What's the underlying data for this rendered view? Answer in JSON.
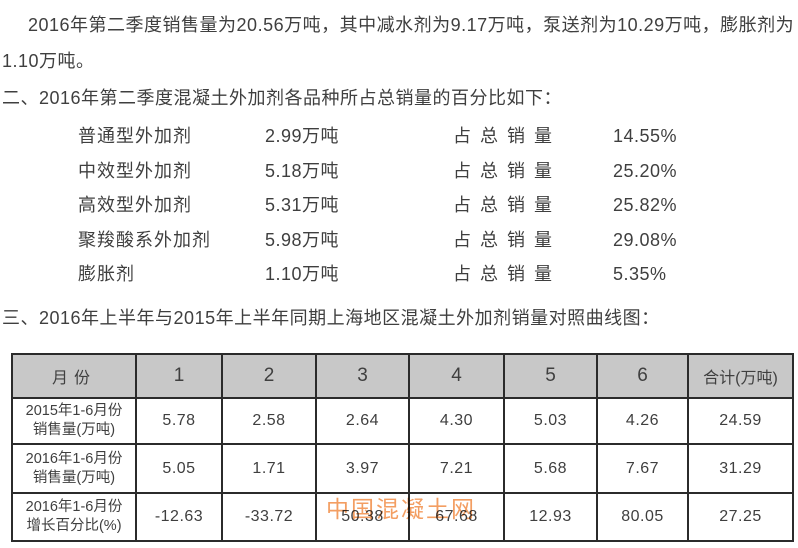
{
  "page": {
    "background": "#ffffff",
    "text_color": "#3f3f3f"
  },
  "intro_paragraph": {
    "line1": "2016年第二季度销售量为20.56万吨，其中减水剂为9.17万吨，泵送剂为10.29万吨，膨胀剂为",
    "line2": "1.10万吨。"
  },
  "section2": {
    "heading": "二、2016年第二季度混凝土外加剂各品种所占总销量的百分比如下：",
    "rows": [
      {
        "name": "普通型外加剂",
        "volume": "2.99万吨",
        "share_label": "占总销量",
        "percent": "14.55%"
      },
      {
        "name": "中效型外加剂",
        "volume": "5.18万吨",
        "share_label": "占总销量",
        "percent": "25.20%"
      },
      {
        "name": "高效型外加剂",
        "volume": "5.31万吨",
        "share_label": "占总销量",
        "percent": "25.82%"
      },
      {
        "name": "聚羧酸系外加剂",
        "volume": "5.98万吨",
        "share_label": "占总销量",
        "percent": "29.08%"
      },
      {
        "name": "膨胀剂",
        "volume": "1.10万吨",
        "share_label": "占总销量",
        "percent": "5.35%"
      }
    ]
  },
  "section3": {
    "heading": "三、2016年上半年与2015年上半年同期上海地区混凝土外加剂销量对照曲线图："
  },
  "table": {
    "header_bg": "#c8c8c8",
    "border_color": "#2b2b2b",
    "columns": [
      "月份",
      "1",
      "2",
      "3",
      "4",
      "5",
      "6",
      "合计(万吨)"
    ],
    "rows": [
      {
        "label_line1": "2015年1-6月份",
        "label_line2": "销售量(万吨)",
        "values": [
          "5.78",
          "2.58",
          "2.64",
          "4.30",
          "5.03",
          "4.26",
          "24.59"
        ]
      },
      {
        "label_line1": "2016年1-6月份",
        "label_line2": "销售量(万吨)",
        "values": [
          "5.05",
          "1.71",
          "3.97",
          "7.21",
          "5.68",
          "7.67",
          "31.29"
        ]
      },
      {
        "label_line1": "2016年1-6月份",
        "label_line2": "增长百分比(%)",
        "values": [
          "-12.63",
          "-33.72",
          "50.38",
          "67.68",
          "12.93",
          "80.05",
          "27.25"
        ]
      }
    ]
  },
  "watermark": {
    "text": "中国混凝土网",
    "color": "#F39E62"
  }
}
